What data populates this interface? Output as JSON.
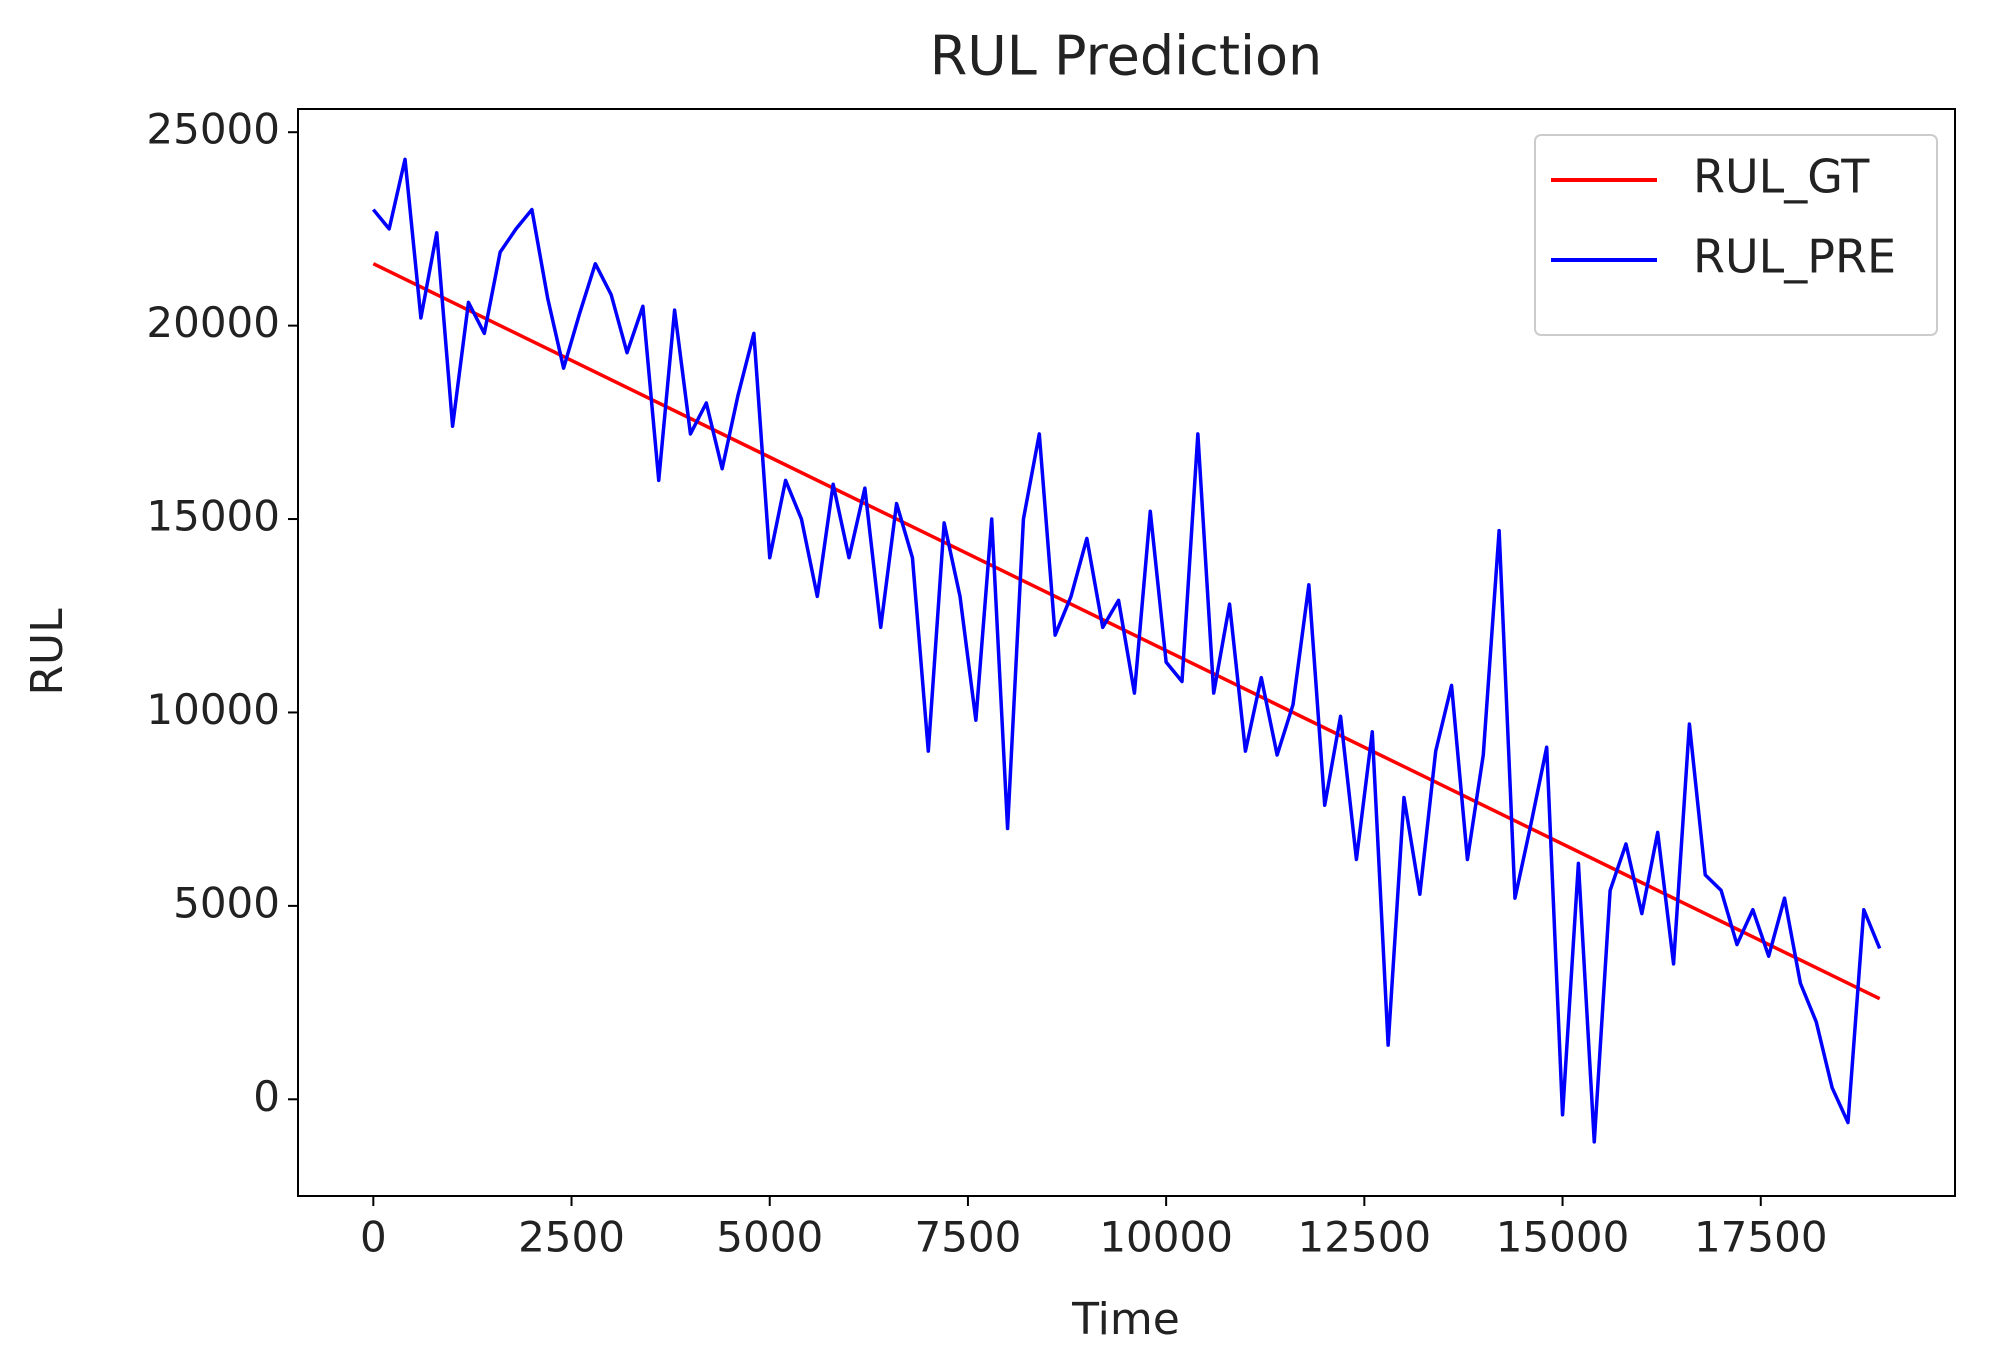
{
  "chart_data": {
    "type": "line",
    "title": "RUL Prediction",
    "x_label": "Time",
    "y_label": "RUL",
    "xlim": [
      -950,
      19950
    ],
    "xticks": [
      0,
      2500,
      5000,
      7500,
      10000,
      12500,
      15000,
      17500
    ],
    "ylim": [
      -2500,
      25600
    ],
    "yticks": [
      0,
      5000,
      10000,
      15000,
      20000,
      25000
    ],
    "grid": false,
    "legend": "upper right",
    "series": [
      {
        "name": "RUL_GT",
        "color": "#ff0000",
        "x": [
          0,
          19000
        ],
        "values": [
          21600,
          2600
        ]
      },
      {
        "name": "RUL_PRE",
        "color": "#0000ff",
        "x": [
          0,
          200,
          400,
          600,
          800,
          1000,
          1200,
          1400,
          1600,
          1800,
          2000,
          2200,
          2400,
          2600,
          2800,
          3000,
          3200,
          3400,
          3600,
          3800,
          4000,
          4200,
          4400,
          4600,
          4800,
          5000,
          5200,
          5400,
          5600,
          5800,
          6000,
          6200,
          6400,
          6600,
          6800,
          7000,
          7200,
          7400,
          7600,
          7800,
          8000,
          8200,
          8400,
          8600,
          8800,
          9000,
          9200,
          9400,
          9600,
          9800,
          10000,
          10200,
          10400,
          10600,
          10800,
          11000,
          11200,
          11400,
          11600,
          11800,
          12000,
          12200,
          12400,
          12600,
          12800,
          13000,
          13200,
          13400,
          13600,
          13800,
          14000,
          14200,
          14400,
          14600,
          14800,
          15000,
          15200,
          15400,
          15600,
          15800,
          16000,
          16200,
          16400,
          16600,
          16800,
          17000,
          17200,
          17400,
          17600,
          17800,
          18000,
          18200,
          18400,
          18600,
          18800,
          19000
        ],
        "values": [
          23000,
          22500,
          24300,
          20200,
          22400,
          17400,
          20600,
          19800,
          21900,
          22500,
          23000,
          20700,
          18900,
          20300,
          21600,
          20800,
          19300,
          20500,
          16000,
          20400,
          17200,
          18000,
          16300,
          18200,
          19800,
          14000,
          16000,
          15000,
          13000,
          15900,
          14000,
          15800,
          12200,
          15400,
          14000,
          9000,
          14900,
          13000,
          9800,
          15000,
          7000,
          15000,
          17200,
          12000,
          13000,
          14500,
          12200,
          12900,
          10500,
          15200,
          11300,
          10800,
          17200,
          10500,
          12800,
          9000,
          10900,
          8900,
          10200,
          13300,
          7600,
          9900,
          6200,
          9500,
          1400,
          7800,
          5300,
          9000,
          10700,
          6200,
          8900,
          14700,
          5200,
          7100,
          9100,
          -400,
          6100,
          -1100,
          5400,
          6600,
          4800,
          6900,
          3500,
          9700,
          5800,
          5400,
          4000,
          4900,
          3700,
          5200,
          3000,
          2000,
          300,
          -600,
          4900,
          3900
        ]
      }
    ]
  }
}
